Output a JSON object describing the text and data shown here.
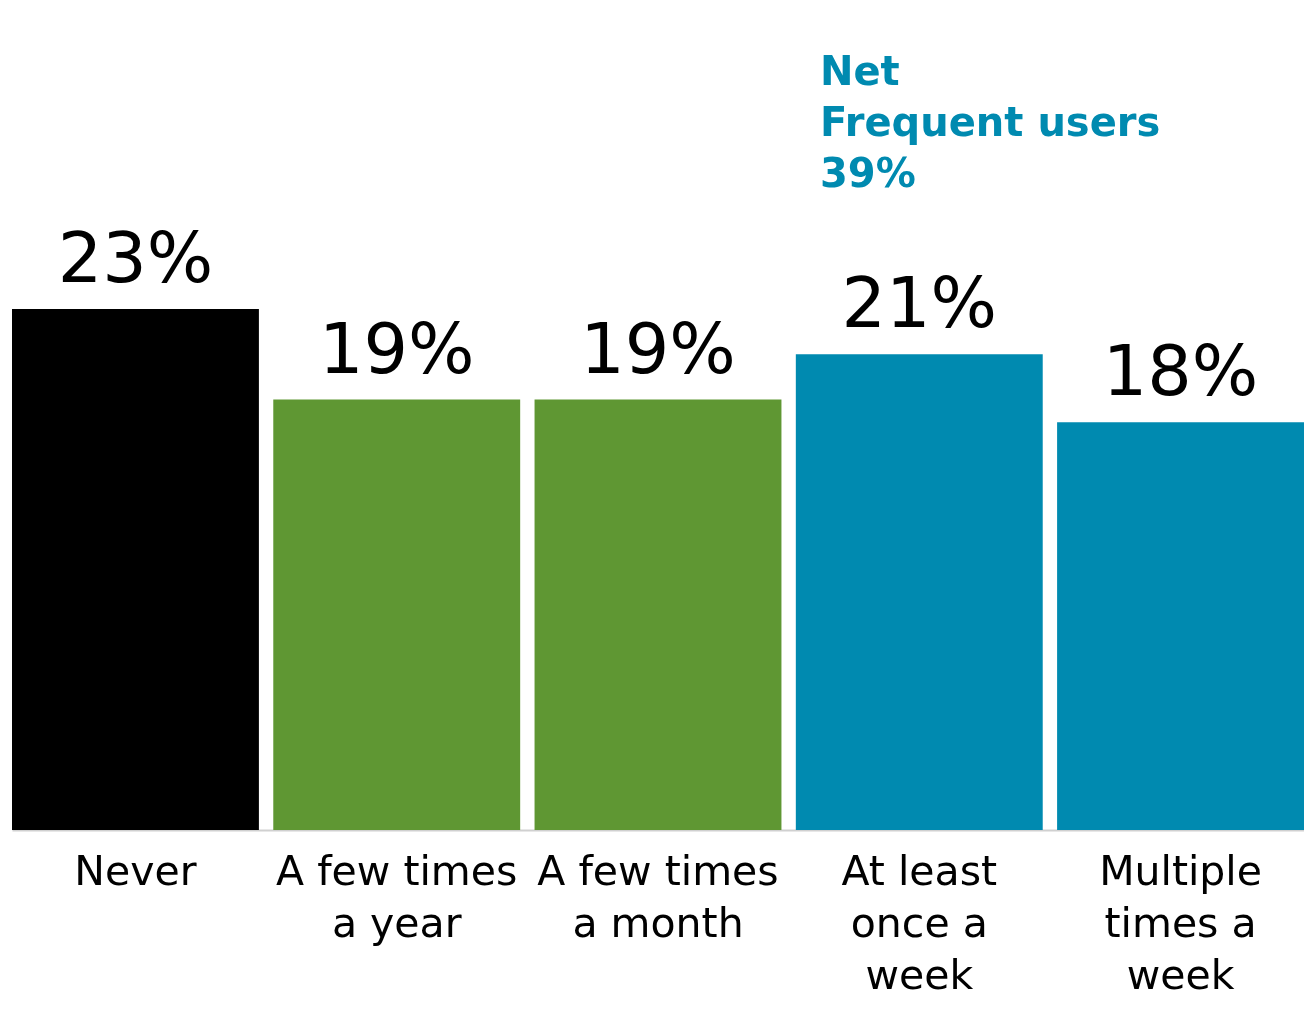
{
  "chart_data": {
    "type": "bar",
    "categories": [
      "Never",
      "A few times\na year",
      "A few times\na month",
      "At least\nonce a\nweek",
      "Multiple\ntimes a\nweek"
    ],
    "values": [
      23,
      19,
      19,
      21,
      18
    ],
    "colors": [
      "#000000",
      "#5f9733",
      "#5f9733",
      "#008ab0",
      "#008ab0"
    ],
    "value_labels": [
      "23%",
      "19%",
      "19%",
      "21%",
      "18%"
    ],
    "annotations": [
      "Net\nFrequent users\n39%"
    ],
    "tick_labels": "x"
  }
}
